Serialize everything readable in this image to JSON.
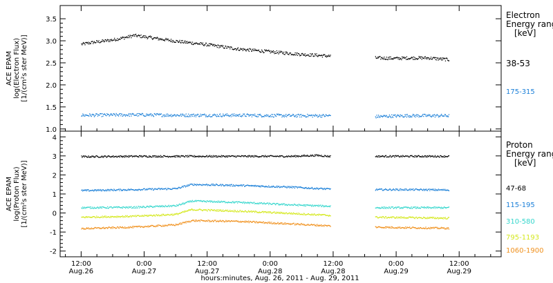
{
  "chart_data": [
    {
      "type": "scatter",
      "panel": "electron",
      "ylabel_lines": [
        "ACE EPAM",
        "log(Electron Flux)",
        "[1/(cm²s ster MeV)]"
      ],
      "ylim": [
        0.95,
        3.8
      ],
      "y_ticks": [
        1.0,
        1.5,
        2.0,
        2.5,
        3.0,
        3.5
      ],
      "legend_title": [
        "Electron",
        "Energy range",
        "[keV]"
      ],
      "series": [
        {
          "name": "38-53",
          "color": "#000000",
          "points": [
            [
              0,
              2.93
            ],
            [
              2,
              2.97
            ],
            [
              4,
              3.0
            ],
            [
              6,
              3.03
            ],
            [
              9,
              3.1
            ],
            [
              10,
              3.13
            ],
            [
              12,
              3.1
            ],
            [
              15,
              3.05
            ],
            [
              18,
              3.0
            ],
            [
              21,
              2.96
            ],
            [
              24,
              2.92
            ],
            [
              27,
              2.87
            ],
            [
              30,
              2.82
            ],
            [
              33,
              2.79
            ],
            [
              36,
              2.76
            ],
            [
              39,
              2.73
            ],
            [
              42,
              2.7
            ],
            [
              45,
              2.68
            ],
            [
              50,
              2.64
            ],
            [
              54,
              2.62
            ],
            [
              56,
              2.62
            ],
            [
              60,
              2.61
            ],
            [
              63,
              2.62
            ],
            [
              66,
              2.62
            ],
            [
              68,
              2.6
            ],
            [
              70,
              2.58
            ]
          ]
        },
        {
          "name": "175-315",
          "color": "#1a7fd8",
          "points": [
            [
              0,
              1.32
            ],
            [
              10,
              1.33
            ],
            [
              20,
              1.32
            ],
            [
              30,
              1.32
            ],
            [
              40,
              1.31
            ],
            [
              47,
              1.31
            ],
            [
              56,
              1.29
            ],
            [
              62,
              1.31
            ],
            [
              70,
              1.31
            ]
          ]
        }
      ]
    },
    {
      "type": "scatter",
      "panel": "proton",
      "ylabel_lines": [
        "ACE EPAM",
        "log(Proton Flux)",
        "[1/(cm²s ster MeV)]"
      ],
      "ylim": [
        -2.3,
        4.3
      ],
      "y_ticks": [
        -2,
        -1,
        0,
        1,
        2,
        3,
        4
      ],
      "legend_title": [
        "Proton",
        "Energy range",
        "[keV]"
      ],
      "series": [
        {
          "name": "47-68",
          "color": "#000000",
          "points": [
            [
              0,
              2.98
            ],
            [
              10,
              3.0
            ],
            [
              20,
              3.0
            ],
            [
              30,
              3.0
            ],
            [
              40,
              3.0
            ],
            [
              45,
              3.05
            ],
            [
              47,
              3.0
            ],
            [
              56,
              3.0
            ],
            [
              62,
              3.0
            ],
            [
              70,
              3.0
            ]
          ]
        },
        {
          "name": "115-195",
          "color": "#1a7fd8",
          "points": [
            [
              0,
              1.2
            ],
            [
              10,
              1.25
            ],
            [
              18,
              1.3
            ],
            [
              21,
              1.52
            ],
            [
              30,
              1.47
            ],
            [
              40,
              1.38
            ],
            [
              47,
              1.28
            ],
            [
              56,
              1.25
            ],
            [
              62,
              1.25
            ],
            [
              70,
              1.23
            ]
          ]
        },
        {
          "name": "310-580",
          "color": "#33d6cc",
          "points": [
            [
              0,
              0.3
            ],
            [
              10,
              0.32
            ],
            [
              18,
              0.4
            ],
            [
              21,
              0.65
            ],
            [
              30,
              0.58
            ],
            [
              40,
              0.45
            ],
            [
              47,
              0.38
            ],
            [
              56,
              0.3
            ],
            [
              62,
              0.3
            ],
            [
              70,
              0.3
            ]
          ]
        },
        {
          "name": "795-1193",
          "color": "#d4e81c",
          "points": [
            [
              0,
              -0.2
            ],
            [
              10,
              -0.15
            ],
            [
              18,
              -0.05
            ],
            [
              21,
              0.2
            ],
            [
              30,
              0.12
            ],
            [
              40,
              0.0
            ],
            [
              47,
              -0.1
            ],
            [
              56,
              -0.2
            ],
            [
              62,
              -0.22
            ],
            [
              70,
              -0.25
            ]
          ]
        },
        {
          "name": "1060-1900",
          "color": "#f0901c",
          "points": [
            [
              0,
              -0.8
            ],
            [
              10,
              -0.72
            ],
            [
              18,
              -0.6
            ],
            [
              21,
              -0.38
            ],
            [
              30,
              -0.42
            ],
            [
              40,
              -0.55
            ],
            [
              47,
              -0.65
            ],
            [
              56,
              -0.72
            ],
            [
              62,
              -0.75
            ],
            [
              70,
              -0.78
            ]
          ]
        }
      ]
    }
  ],
  "x_axis": {
    "xlim": [
      -4,
      80
    ],
    "data_windows": [
      [
        0,
        47.5
      ],
      [
        56,
        70
      ]
    ],
    "ticks": [
      {
        "hour": 0,
        "time": "12:00",
        "date": "Aug.26"
      },
      {
        "hour": 12,
        "time": "0:00",
        "date": "Aug.27"
      },
      {
        "hour": 24,
        "time": "12:00",
        "date": "Aug.27"
      },
      {
        "hour": 36,
        "time": "0:00",
        "date": "Aug.28"
      },
      {
        "hour": 48,
        "time": "12:00",
        "date": "Aug.28"
      },
      {
        "hour": 60,
        "time": "0:00",
        "date": "Aug.29"
      },
      {
        "hour": 72,
        "time": "12:00",
        "date": "Aug.29"
      }
    ],
    "xlabel": "hours:minutes, Aug. 26, 2011 - Aug. 29, 2011"
  }
}
